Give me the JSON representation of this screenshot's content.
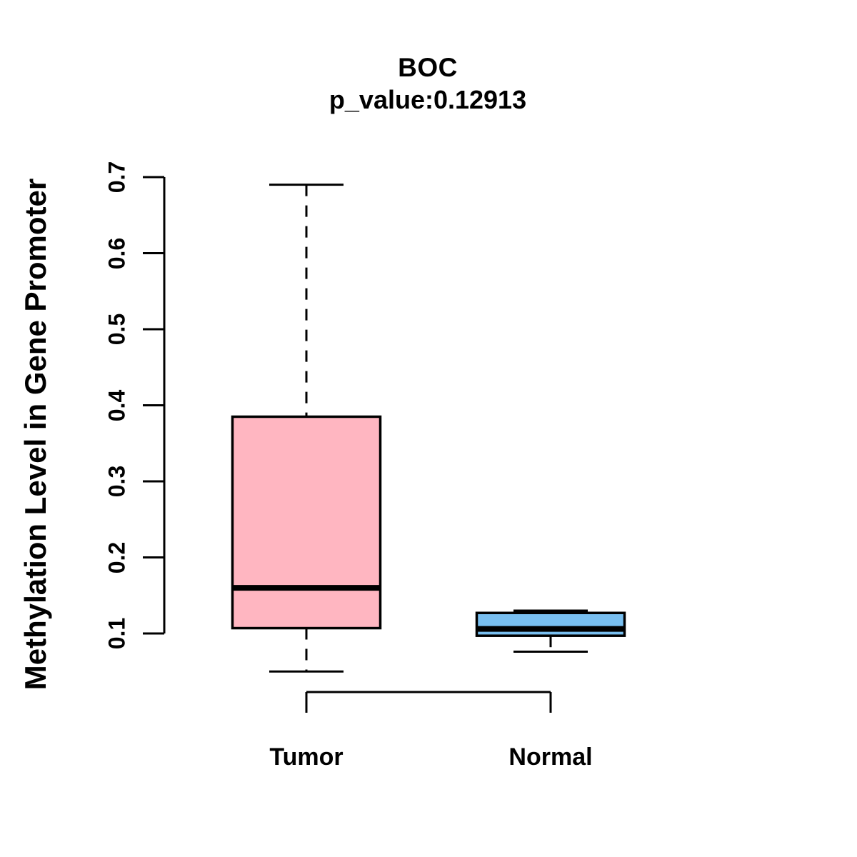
{
  "page": {
    "background": "#ffffff",
    "foreground": "#000000"
  },
  "chart_data": {
    "type": "boxplot",
    "title": "BOC",
    "subtitle": "p_value:0.12913",
    "xlabel": "",
    "ylabel": "Methylation Level in Gene Promoter",
    "categories": [
      "Tumor",
      "Normal"
    ],
    "series": [
      {
        "name": "Tumor",
        "fill": "#FFB6C1",
        "min": 0.05,
        "q1": 0.107,
        "median": 0.16,
        "q3": 0.385,
        "max": 0.69
      },
      {
        "name": "Normal",
        "fill": "#79BFF0",
        "min": 0.076,
        "q1": 0.097,
        "median": 0.106,
        "q3": 0.127,
        "max": 0.13
      }
    ],
    "ylim": [
      0.1,
      0.7
    ],
    "yticks": [
      "0.1",
      "0.2",
      "0.3",
      "0.4",
      "0.5",
      "0.6",
      "0.7"
    ],
    "ytick_values": [
      0.1,
      0.2,
      0.3,
      0.4,
      0.5,
      0.6,
      0.7
    ],
    "axis_color": "#000000",
    "whisker_line_style": "dashed",
    "grid": false,
    "legend": false
  }
}
